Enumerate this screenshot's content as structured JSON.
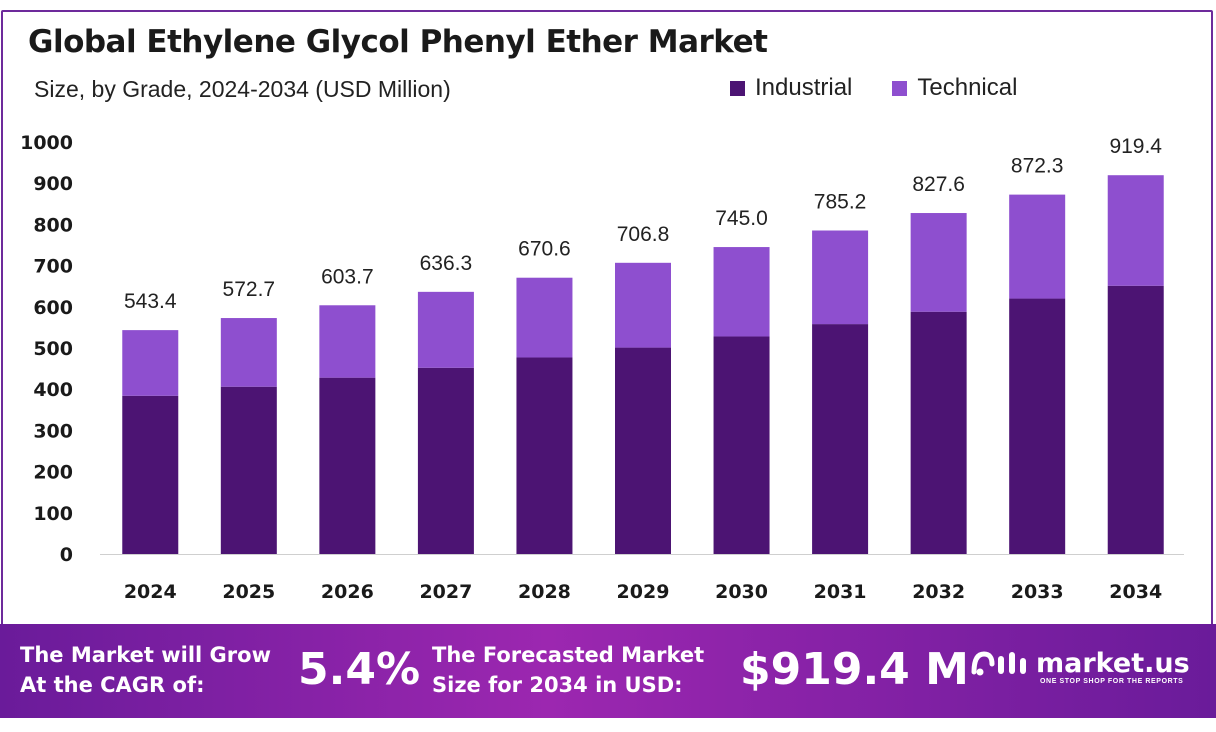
{
  "header": {
    "title": "Global Ethylene Glycol Phenyl Ether Market",
    "subtitle": "Size, by Grade, 2024-2034 (USD Million)"
  },
  "legend": [
    {
      "label": "Industrial",
      "color": "#4c1473"
    },
    {
      "label": "Technical",
      "color": "#8e4fcf"
    }
  ],
  "chart_data": {
    "type": "bar",
    "stacked": true,
    "categories": [
      "2024",
      "2025",
      "2026",
      "2027",
      "2028",
      "2029",
      "2030",
      "2031",
      "2032",
      "2033",
      "2034"
    ],
    "series": [
      {
        "name": "Industrial",
        "color": "#4c1473",
        "values": [
          384,
          406,
          428,
          452,
          477,
          501,
          528,
          558,
          588,
          620,
          651
        ]
      },
      {
        "name": "Technical",
        "color": "#8e4fcf",
        "values": [
          159.4,
          166.7,
          175.7,
          184.3,
          193.6,
          205.8,
          217.0,
          227.2,
          239.6,
          252.3,
          268.4
        ]
      }
    ],
    "totals": [
      "543.4",
      "572.7",
      "603.7",
      "636.3",
      "670.6",
      "706.8",
      "745.0",
      "785.2",
      "827.6",
      "872.3",
      "919.4"
    ],
    "yticks": [
      0,
      100,
      200,
      300,
      400,
      500,
      600,
      700,
      800,
      900,
      1000
    ],
    "ylim": [
      0,
      1000
    ],
    "grid": false,
    "legend_position": "top-right"
  },
  "footer": {
    "cagr_text_line1": "The Market will Grow",
    "cagr_text_line2": "At the CAGR of:",
    "cagr_value": "5.4%",
    "forecast_text_line1": "The Forecasted Market",
    "forecast_text_line2": "Size for 2034 in USD:",
    "forecast_value": "$919.4 M",
    "brand_name": "market.us",
    "brand_tagline": "ONE STOP SHOP FOR THE REPORTS"
  }
}
